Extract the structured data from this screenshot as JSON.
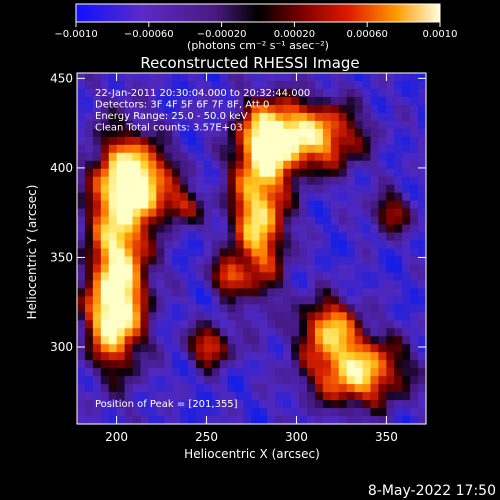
{
  "colorbar": {
    "ticks": [
      "−0.0010",
      "−0.00060",
      "−0.00020",
      "0.00020",
      "0.00060",
      "0.0010"
    ],
    "units": "(photons cm⁻² s⁻¹ asec⁻²)",
    "range": [
      -0.001,
      0.001
    ]
  },
  "chart_data": {
    "type": "heatmap",
    "title": "Reconstructed RHESSI Image",
    "xlabel": "Heliocentric X (arcsec)",
    "ylabel": "Heliocentric Y (arcsec)",
    "xlim": [
      178,
      372
    ],
    "ylim": [
      257,
      453
    ],
    "xticks": [
      200,
      250,
      300,
      350
    ],
    "yticks": [
      300,
      350,
      400,
      450
    ],
    "info_lines": [
      "22-Jan-2011 20:30:04.000 to 20:32:44.000",
      "Detectors: 3F 4F 5F 6F 7F 8F, Att 0",
      "Energy Range: 25.0 - 50.0 keV",
      "Clean    Total counts: 3.57E+03"
    ],
    "peak_label": "Position of Peak = [201,355]",
    "peak": [
      201,
      355
    ],
    "colormap": [
      "#0000ff",
      "#3a0a8a",
      "#4a1a9a",
      "#000000",
      "#6a0000",
      "#c81400",
      "#ff6a00",
      "#ffc800",
      "#ffffcc"
    ]
  },
  "footer": {
    "date": "8-May-2022 17:50"
  }
}
